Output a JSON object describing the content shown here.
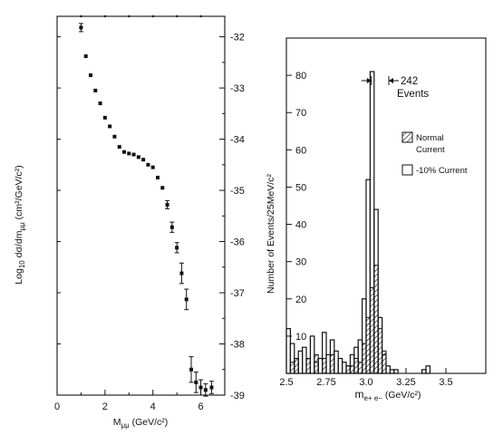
{
  "chart_data": [
    {
      "type": "scatter",
      "xlabel": "M_μμ (GeV/c²)",
      "xlabel_main": "M",
      "xlabel_sub": "μμ",
      "xlabel_unit": "(GeV/c²)",
      "ylabel": "Log10 dσ/dm_μμ (cm²/GeV/c²)",
      "ylabel_parts": {
        "log": "Log",
        "log_sub": "10",
        "expr": "dσ/dm",
        "expr_sub": "μμ",
        "unit": "(cm²/GeV/c²)"
      },
      "xlim": [
        0,
        7
      ],
      "ylim": [
        -39,
        -31.6
      ],
      "xticks": [
        "0",
        "2",
        "4",
        "6"
      ],
      "yticks": [
        "-32",
        "-33",
        "-34",
        "-35",
        "-36",
        "-37",
        "-38",
        "-39"
      ],
      "grid": false,
      "points": [
        {
          "x": 1.0,
          "y": -31.82,
          "err": 0.08
        },
        {
          "x": 1.2,
          "y": -32.38
        },
        {
          "x": 1.4,
          "y": -32.75
        },
        {
          "x": 1.6,
          "y": -33.05
        },
        {
          "x": 1.8,
          "y": -33.3
        },
        {
          "x": 2.0,
          "y": -33.58
        },
        {
          "x": 2.2,
          "y": -33.75
        },
        {
          "x": 2.4,
          "y": -33.95
        },
        {
          "x": 2.6,
          "y": -34.15
        },
        {
          "x": 2.8,
          "y": -34.25
        },
        {
          "x": 3.0,
          "y": -34.28
        },
        {
          "x": 3.2,
          "y": -34.3
        },
        {
          "x": 3.4,
          "y": -34.35
        },
        {
          "x": 3.6,
          "y": -34.4
        },
        {
          "x": 3.8,
          "y": -34.5
        },
        {
          "x": 4.0,
          "y": -34.55
        },
        {
          "x": 4.2,
          "y": -34.75
        },
        {
          "x": 4.4,
          "y": -34.95
        },
        {
          "x": 4.6,
          "y": -35.28,
          "err": 0.08
        },
        {
          "x": 4.8,
          "y": -35.72,
          "err": 0.1
        },
        {
          "x": 5.0,
          "y": -36.12,
          "err": 0.1
        },
        {
          "x": 5.2,
          "y": -36.62,
          "err": 0.2
        },
        {
          "x": 5.4,
          "y": -37.13,
          "err": 0.2
        },
        {
          "x": 5.6,
          "y": -38.5,
          "err": 0.25
        },
        {
          "x": 5.8,
          "y": -38.75,
          "err": 0.2
        },
        {
          "x": 6.0,
          "y": -38.85,
          "err": 0.15
        },
        {
          "x": 6.2,
          "y": -38.9,
          "err": 0.12
        },
        {
          "x": 6.45,
          "y": -38.85,
          "err": 0.12
        }
      ]
    },
    {
      "type": "bar",
      "subtype": "histogram",
      "xlabel": "m_e+e− (GeV/c²)",
      "xlabel_main": "m",
      "xlabel_sub": "e+ e−",
      "xlabel_unit": "(GeV/c²)",
      "ylabel": "Number of Events/25MeV/c²",
      "xlim": [
        2.5,
        3.75
      ],
      "ylim": [
        0,
        90
      ],
      "xticks": [
        "2.5",
        "2.75",
        "3.0",
        "3.25",
        "3.5"
      ],
      "yticks": [
        "10",
        "20",
        "30",
        "40",
        "50",
        "60",
        "70",
        "80"
      ],
      "grid": false,
      "annotation": {
        "value": "242",
        "text": "Events"
      },
      "legend": {
        "placement": "right",
        "items": [
          {
            "name": "Normal Current",
            "line1": "Normal",
            "line2": "Current",
            "style": "hatched"
          },
          {
            "name": "-10% Current",
            "style": "open"
          }
        ]
      },
      "bin_width": 0.025,
      "bin_start": 2.5,
      "series": [
        {
          "name": "Normal Current",
          "style": "hatched",
          "values": [
            0,
            3,
            4,
            0,
            0,
            4,
            0,
            5,
            0,
            4,
            0,
            5,
            0,
            0,
            0,
            2,
            2,
            4,
            3,
            8,
            15,
            23,
            29,
            12,
            6,
            0,
            0,
            0,
            0,
            0,
            0,
            0,
            0,
            0,
            0,
            0,
            0,
            0,
            0,
            0
          ]
        },
        {
          "name": "-10% Current",
          "style": "open",
          "values": [
            12,
            8,
            4,
            6,
            7,
            4,
            10,
            3,
            4,
            11,
            5,
            9,
            6,
            4,
            3,
            2,
            5,
            7,
            9,
            20,
            52,
            81,
            44,
            15,
            5,
            2,
            1,
            1,
            0,
            0,
            0,
            0,
            0,
            0,
            1,
            2,
            0,
            0,
            0,
            0
          ]
        }
      ]
    }
  ]
}
